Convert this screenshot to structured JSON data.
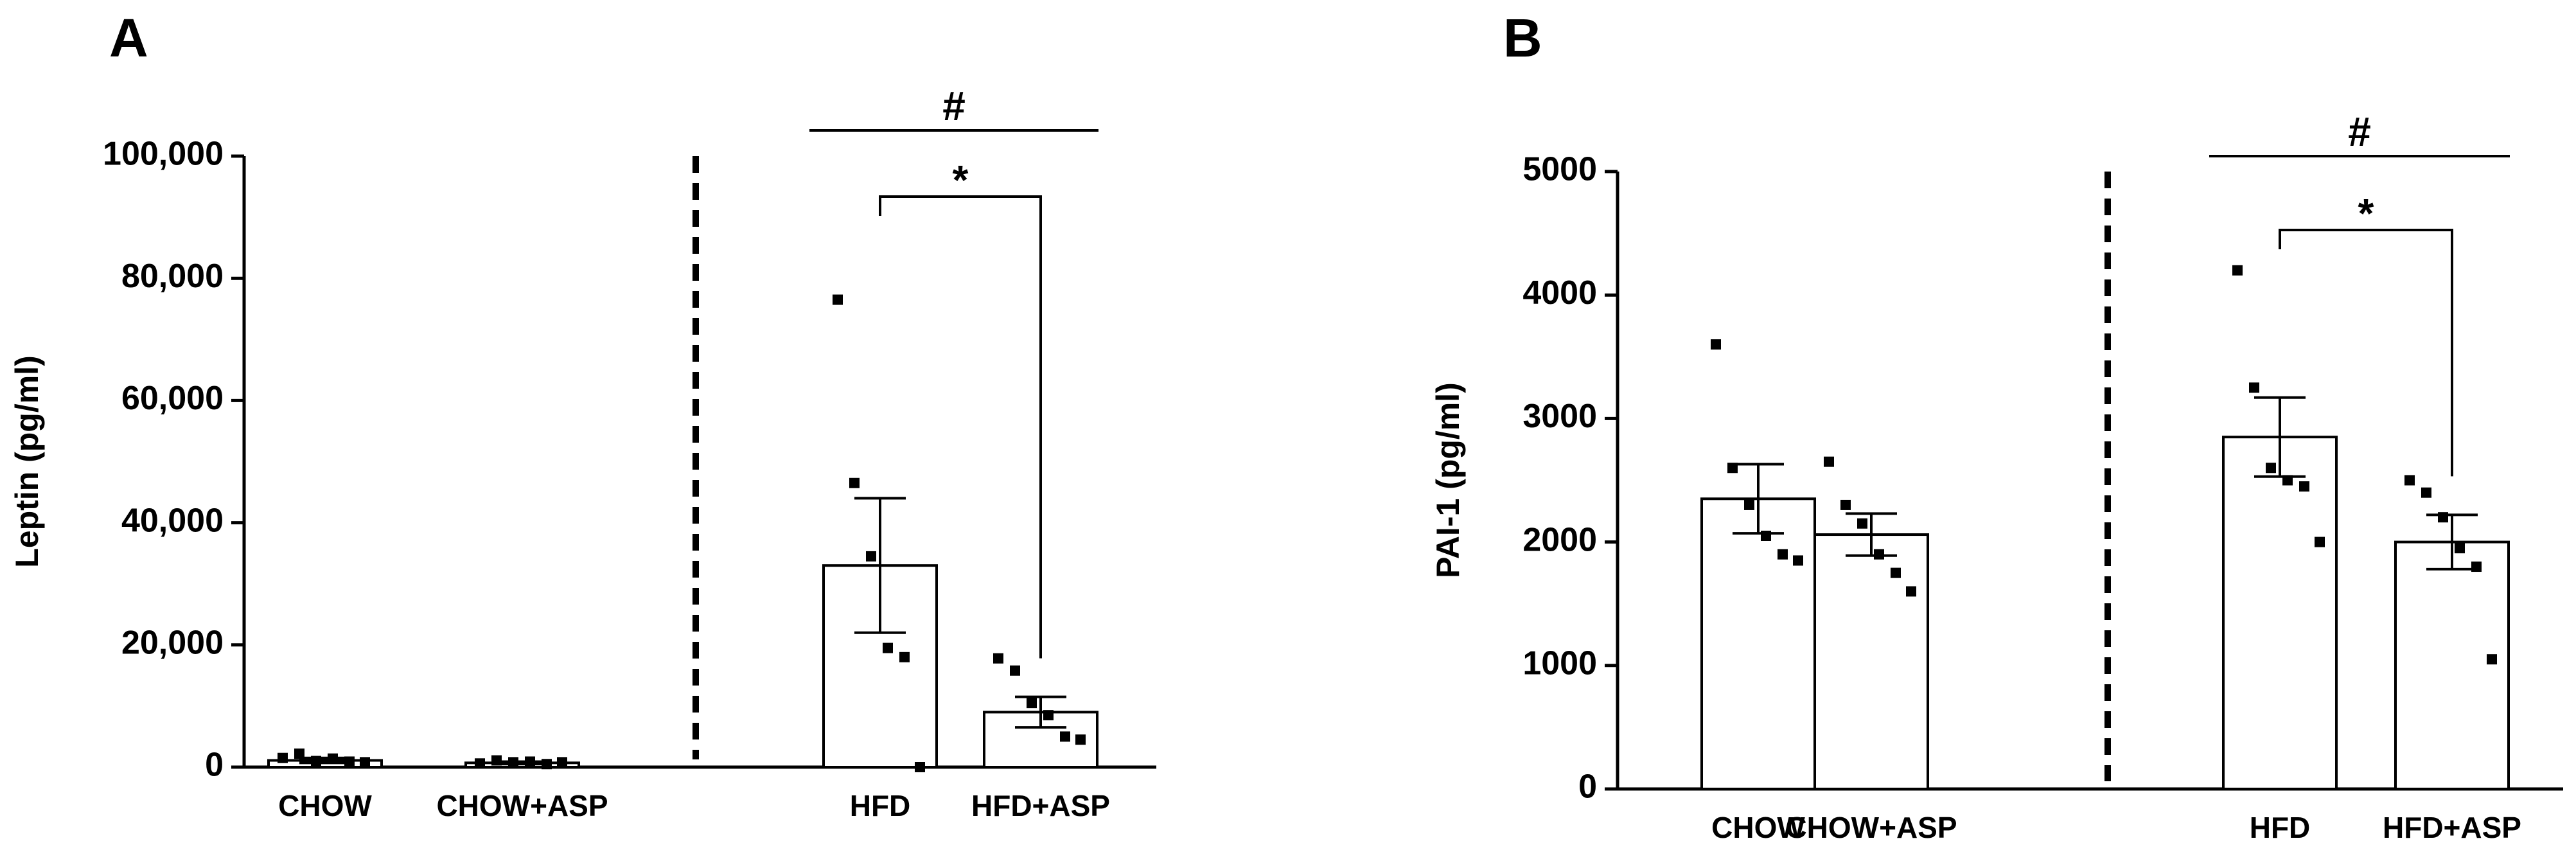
{
  "chart_data": [
    {
      "type": "bar",
      "panel_label": "A",
      "ylabel": "Leptin (pg/ml)",
      "ylim": [
        0,
        100000
      ],
      "yticks": [
        0,
        20000,
        40000,
        60000,
        80000,
        100000
      ],
      "ytick_labels": [
        "0",
        "20,000",
        "40,000",
        "60,000",
        "80,000",
        "100,000"
      ],
      "categories": [
        "CHOW",
        "CHOW+ASP",
        "HFD",
        "HFD+ASP"
      ],
      "values": [
        1100,
        700,
        33000,
        9000
      ],
      "sem": [
        400,
        200,
        11000,
        2500
      ],
      "points": [
        [
          1500,
          2200,
          1000,
          1400,
          900,
          800
        ],
        [
          600,
          1100,
          800,
          900,
          500,
          800
        ],
        [
          76500,
          46500,
          34500,
          19500,
          18000,
          0
        ],
        [
          17800,
          15800,
          10500,
          8500,
          5000,
          4500
        ]
      ],
      "group_divider": "between CHOW+ASP and HFD",
      "annotations": [
        {
          "text": "#",
          "spans": [
            "HFD",
            "HFD+ASP"
          ],
          "style": "line"
        },
        {
          "text": "*",
          "spans": [
            "HFD",
            "HFD+ASP"
          ],
          "style": "bracket"
        }
      ]
    },
    {
      "type": "bar",
      "panel_label": "B",
      "ylabel": "PAI-1 (pg/ml)",
      "ylim": [
        0,
        5000
      ],
      "yticks": [
        0,
        1000,
        2000,
        3000,
        4000,
        5000
      ],
      "ytick_labels": [
        "0",
        "1000",
        "2000",
        "3000",
        "4000",
        "5000"
      ],
      "categories": [
        "CHOW",
        "CHOW+ASP",
        "HFD",
        "HFD+ASP"
      ],
      "values": [
        2350,
        2060,
        2850,
        2000
      ],
      "sem": [
        280,
        170,
        320,
        220
      ],
      "points": [
        [
          3600,
          2600,
          2300,
          2050,
          1900,
          1850
        ],
        [
          2650,
          2300,
          2150,
          1900,
          1750,
          1600
        ],
        [
          4200,
          3250,
          2600,
          2500,
          2450,
          2000
        ],
        [
          2500,
          2400,
          2200,
          1950,
          1800,
          1050
        ]
      ],
      "group_divider": "between CHOW+ASP and HFD",
      "annotations": [
        {
          "text": "#",
          "spans": [
            "HFD",
            "HFD+ASP"
          ],
          "style": "line"
        },
        {
          "text": "*",
          "spans": [
            "HFD",
            "HFD+ASP"
          ],
          "style": "bracket"
        }
      ]
    }
  ]
}
